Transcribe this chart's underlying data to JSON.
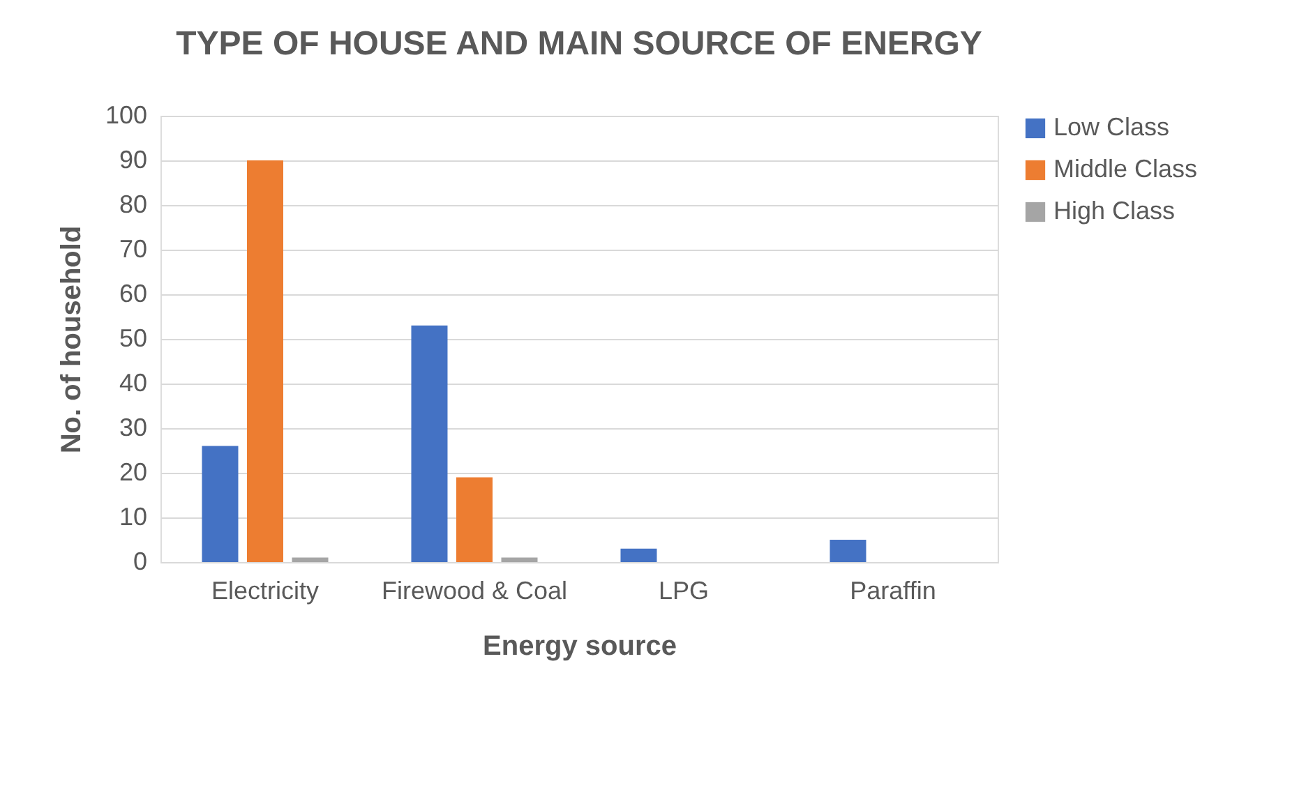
{
  "chart_data": {
    "type": "bar",
    "title": "TYPE OF HOUSE AND MAIN SOURCE OF ENERGY",
    "xlabel": "Energy source",
    "ylabel": "No. of household",
    "categories": [
      "Electricity",
      "Firewood & Coal",
      "LPG",
      "Paraffin"
    ],
    "series": [
      {
        "name": "Low Class",
        "color": "#4472c4",
        "values": [
          26,
          53,
          3,
          5
        ]
      },
      {
        "name": "Middle Class",
        "color": "#ed7d31",
        "values": [
          90,
          19,
          0,
          0
        ]
      },
      {
        "name": "High Class",
        "color": "#a5a5a5",
        "values": [
          1,
          1,
          0,
          0
        ]
      }
    ],
    "ylim": [
      0,
      100
    ],
    "yticks": [
      0,
      10,
      20,
      30,
      40,
      50,
      60,
      70,
      80,
      90,
      100
    ],
    "grid": "y",
    "legend": "right"
  }
}
